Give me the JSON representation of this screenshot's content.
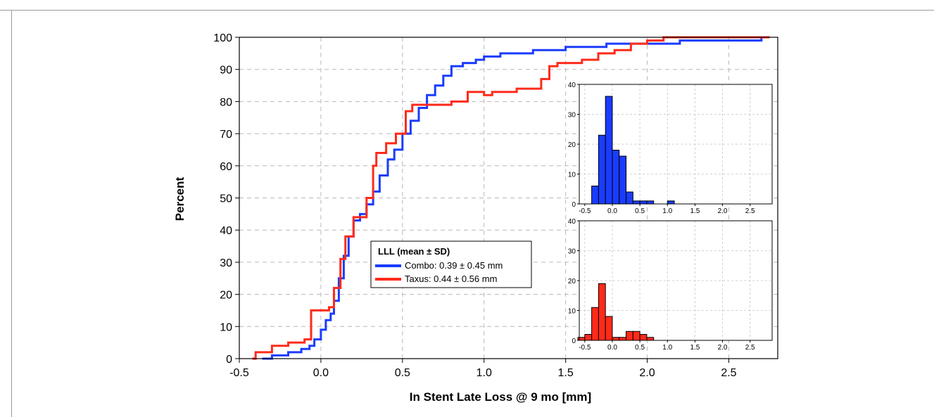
{
  "chart_data": [
    {
      "type": "line",
      "subtype": "cumulative-distribution",
      "xlabel": "In Stent Late Loss @ 9 mo [mm]",
      "ylabel": "Percent",
      "xlim": [
        -0.5,
        2.8
      ],
      "ylim": [
        0,
        100
      ],
      "xticks": [
        -0.5,
        0.0,
        0.5,
        1.0,
        1.5,
        2.0,
        2.5
      ],
      "xtick_labels": [
        "-0.5",
        "0.0",
        "0.5",
        "1.0",
        "1.5",
        "2.0",
        "2.5"
      ],
      "yticks": [
        0,
        10,
        20,
        30,
        40,
        50,
        60,
        70,
        80,
        90,
        100
      ],
      "grid": true,
      "legend": {
        "title": "LLL (mean ± SD)",
        "placement": "center",
        "entries": [
          "Combo: 0.39 ± 0.45 mm",
          "Taxus: 0.44 ± 0.56 mm"
        ]
      },
      "series": [
        {
          "color": "#1a3cff",
          "points": [
            [
              -0.36,
              0
            ],
            [
              -0.3,
              1
            ],
            [
              -0.2,
              2
            ],
            [
              -0.12,
              3
            ],
            [
              -0.07,
              4
            ],
            [
              -0.04,
              6
            ],
            [
              0.0,
              9
            ],
            [
              0.03,
              12
            ],
            [
              0.06,
              14
            ],
            [
              0.08,
              18
            ],
            [
              0.11,
              25
            ],
            [
              0.14,
              32
            ],
            [
              0.17,
              38
            ],
            [
              0.2,
              43
            ],
            [
              0.24,
              45
            ],
            [
              0.28,
              48
            ],
            [
              0.32,
              52
            ],
            [
              0.36,
              57
            ],
            [
              0.41,
              62
            ],
            [
              0.45,
              65
            ],
            [
              0.5,
              70
            ],
            [
              0.55,
              74
            ],
            [
              0.6,
              78
            ],
            [
              0.65,
              82
            ],
            [
              0.7,
              85
            ],
            [
              0.75,
              88
            ],
            [
              0.8,
              91
            ],
            [
              0.87,
              92
            ],
            [
              0.95,
              93
            ],
            [
              1.0,
              94
            ],
            [
              1.1,
              95
            ],
            [
              1.3,
              96
            ],
            [
              1.5,
              97
            ],
            [
              1.75,
              98
            ],
            [
              2.2,
              99
            ],
            [
              2.65,
              99
            ],
            [
              2.7,
              100
            ],
            [
              2.75,
              100
            ]
          ]
        },
        {
          "color": "#ff2a1a",
          "points": [
            [
              -0.42,
              0
            ],
            [
              -0.4,
              2
            ],
            [
              -0.3,
              4
            ],
            [
              -0.2,
              5
            ],
            [
              -0.1,
              6
            ],
            [
              -0.06,
              15
            ],
            [
              0.05,
              16
            ],
            [
              0.08,
              22
            ],
            [
              0.12,
              31
            ],
            [
              0.15,
              38
            ],
            [
              0.2,
              44
            ],
            [
              0.28,
              50
            ],
            [
              0.32,
              60
            ],
            [
              0.34,
              64
            ],
            [
              0.4,
              67
            ],
            [
              0.46,
              70
            ],
            [
              0.52,
              77
            ],
            [
              0.56,
              79
            ],
            [
              0.8,
              80
            ],
            [
              0.9,
              83
            ],
            [
              1.0,
              82
            ],
            [
              1.05,
              83
            ],
            [
              1.2,
              84
            ],
            [
              1.35,
              87
            ],
            [
              1.4,
              91
            ],
            [
              1.45,
              92
            ],
            [
              1.6,
              93
            ],
            [
              1.7,
              95
            ],
            [
              1.8,
              96
            ],
            [
              1.9,
              98
            ],
            [
              2.0,
              99
            ],
            [
              2.1,
              100
            ],
            [
              2.75,
              100
            ]
          ]
        }
      ]
    },
    {
      "type": "bar",
      "subtype": "histogram",
      "bin_start": -0.375,
      "bin_width": 0.125,
      "values": [
        6,
        23,
        36,
        18,
        16,
        4,
        1,
        1,
        1,
        0,
        0,
        1
      ],
      "xlim": [
        -0.6,
        2.9
      ],
      "ylim": [
        0,
        40
      ],
      "xticks": [
        -0.5,
        0.0,
        0.5,
        1.0,
        1.5,
        2.0,
        2.5
      ],
      "xtick_labels": [
        "-0.5",
        "0.0",
        "0.5",
        "1.0",
        "1.5",
        "2.0",
        "2.5"
      ],
      "yticks": [
        0,
        10,
        20,
        30,
        40
      ],
      "grid": true,
      "color": "#1a3cff"
    },
    {
      "type": "bar",
      "subtype": "histogram",
      "bin_start": -0.625,
      "bin_width": 0.125,
      "values": [
        1,
        2,
        11,
        19,
        8,
        1,
        1,
        3,
        3,
        2,
        1
      ],
      "xlim": [
        -0.6,
        2.9
      ],
      "ylim": [
        0,
        40
      ],
      "xticks": [
        -0.5,
        0.0,
        0.5,
        1.0,
        1.5,
        2.0,
        2.5
      ],
      "xtick_labels": [
        "-0.5",
        "0.0",
        "0.5",
        "1.0",
        "1.5",
        "2.0",
        "2.5"
      ],
      "yticks": [
        0,
        10,
        20,
        30,
        40
      ],
      "grid": true,
      "color": "#ff2a1a"
    }
  ]
}
